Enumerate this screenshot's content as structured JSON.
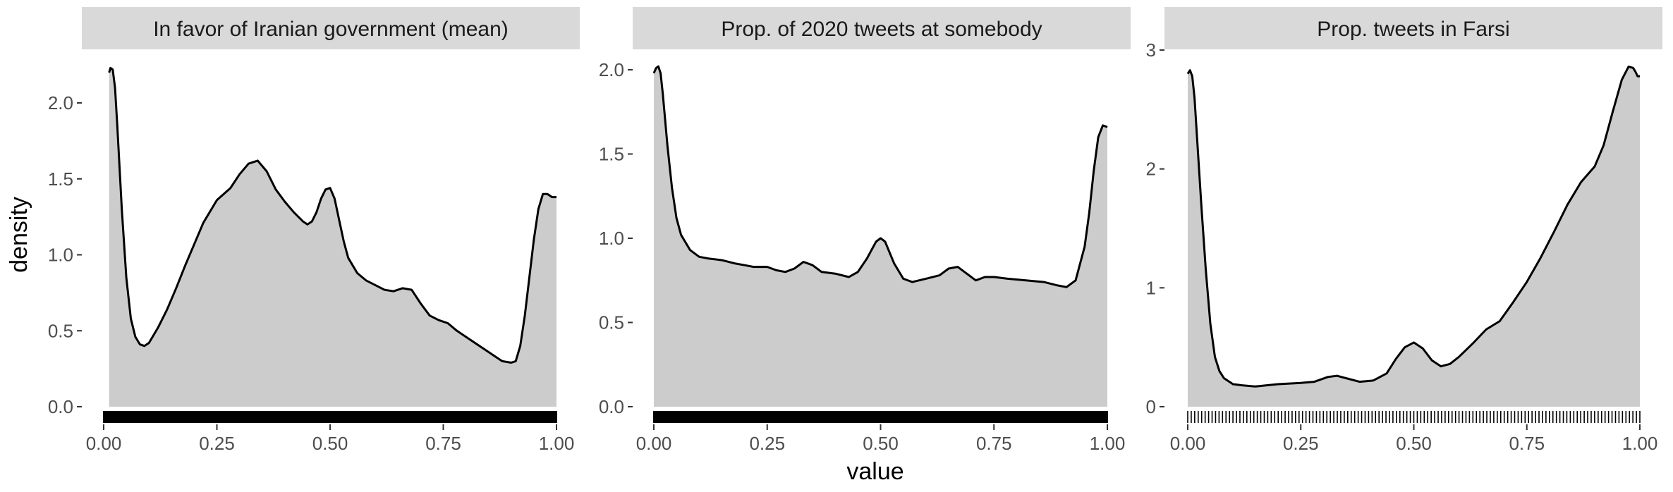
{
  "figure": {
    "xlabel": "value",
    "ylabel": "density"
  },
  "colors": {
    "strip_background": "#d9d9d9",
    "area_fill": "#cccccc",
    "line": "#000000",
    "rug": "#000000",
    "tick_text": "#4d4d4d"
  },
  "chart_data": [
    {
      "type": "area",
      "subtype": "density",
      "title": "In favor of Iranian government (mean)",
      "xlabel": "value",
      "ylabel": "density",
      "xlim": [
        0,
        1
      ],
      "ylim": [
        0,
        2.3
      ],
      "x_ticks": [
        0,
        0.25,
        0.5,
        0.75,
        1
      ],
      "x_tick_labels": [
        "0.00",
        "0.25",
        "0.50",
        "0.75",
        "1.00"
      ],
      "y_ticks": [
        0,
        0.5,
        1,
        1.5,
        2
      ],
      "y_tick_labels": [
        "0.0",
        "0.5",
        "1.0",
        "1.5",
        "2.0"
      ],
      "rug": "dense",
      "x": [
        0.012,
        0.015,
        0.02,
        0.025,
        0.03,
        0.04,
        0.05,
        0.06,
        0.07,
        0.08,
        0.09,
        0.1,
        0.12,
        0.14,
        0.16,
        0.18,
        0.2,
        0.22,
        0.25,
        0.28,
        0.3,
        0.32,
        0.34,
        0.36,
        0.38,
        0.4,
        0.42,
        0.44,
        0.45,
        0.46,
        0.47,
        0.48,
        0.49,
        0.5,
        0.51,
        0.52,
        0.53,
        0.54,
        0.56,
        0.58,
        0.6,
        0.62,
        0.64,
        0.66,
        0.68,
        0.7,
        0.72,
        0.74,
        0.76,
        0.78,
        0.8,
        0.82,
        0.84,
        0.86,
        0.88,
        0.9,
        0.91,
        0.92,
        0.93,
        0.94,
        0.95,
        0.96,
        0.97,
        0.98,
        0.99,
        1.0
      ],
      "y": [
        2.2,
        2.23,
        2.22,
        2.1,
        1.85,
        1.3,
        0.85,
        0.58,
        0.46,
        0.41,
        0.4,
        0.42,
        0.52,
        0.64,
        0.78,
        0.93,
        1.07,
        1.21,
        1.36,
        1.44,
        1.53,
        1.6,
        1.62,
        1.55,
        1.43,
        1.35,
        1.28,
        1.22,
        1.2,
        1.22,
        1.28,
        1.37,
        1.43,
        1.44,
        1.37,
        1.23,
        1.09,
        0.98,
        0.88,
        0.83,
        0.8,
        0.77,
        0.76,
        0.78,
        0.77,
        0.68,
        0.6,
        0.57,
        0.55,
        0.5,
        0.46,
        0.42,
        0.38,
        0.34,
        0.3,
        0.29,
        0.3,
        0.4,
        0.6,
        0.85,
        1.1,
        1.3,
        1.4,
        1.4,
        1.38,
        1.38
      ]
    },
    {
      "type": "area",
      "subtype": "density",
      "title": "Prop. of 2020 tweets at somebody",
      "xlabel": "value",
      "ylabel": "density",
      "xlim": [
        0,
        1
      ],
      "ylim": [
        0,
        2.12
      ],
      "x_ticks": [
        0,
        0.25,
        0.5,
        0.75,
        1
      ],
      "x_tick_labels": [
        "0.00",
        "0.25",
        "0.50",
        "0.75",
        "1.00"
      ],
      "y_ticks": [
        0,
        0.5,
        1,
        1.5,
        2
      ],
      "y_tick_labels": [
        "0.0",
        "0.5",
        "1.0",
        "1.5",
        "2.0"
      ],
      "rug": "dense",
      "x": [
        0.0,
        0.005,
        0.01,
        0.015,
        0.02,
        0.03,
        0.04,
        0.05,
        0.06,
        0.08,
        0.1,
        0.12,
        0.15,
        0.18,
        0.2,
        0.22,
        0.25,
        0.27,
        0.29,
        0.31,
        0.33,
        0.35,
        0.37,
        0.4,
        0.43,
        0.45,
        0.47,
        0.49,
        0.5,
        0.51,
        0.53,
        0.55,
        0.57,
        0.6,
        0.63,
        0.65,
        0.67,
        0.69,
        0.71,
        0.73,
        0.75,
        0.78,
        0.82,
        0.86,
        0.89,
        0.91,
        0.93,
        0.95,
        0.96,
        0.97,
        0.98,
        0.99,
        1.0
      ],
      "y": [
        1.98,
        2.01,
        2.02,
        1.98,
        1.85,
        1.55,
        1.3,
        1.12,
        1.02,
        0.93,
        0.89,
        0.88,
        0.87,
        0.85,
        0.84,
        0.83,
        0.83,
        0.81,
        0.8,
        0.82,
        0.86,
        0.84,
        0.8,
        0.79,
        0.77,
        0.8,
        0.88,
        0.98,
        1.0,
        0.98,
        0.85,
        0.76,
        0.74,
        0.76,
        0.78,
        0.82,
        0.83,
        0.79,
        0.75,
        0.77,
        0.77,
        0.76,
        0.75,
        0.74,
        0.72,
        0.71,
        0.75,
        0.95,
        1.15,
        1.4,
        1.6,
        1.67,
        1.66
      ]
    },
    {
      "type": "area",
      "subtype": "density",
      "title": "Prop. tweets in Farsi",
      "xlabel": "value",
      "ylabel": "density",
      "xlim": [
        0,
        1
      ],
      "ylim": [
        0,
        3.0
      ],
      "x_ticks": [
        0,
        0.25,
        0.5,
        0.75,
        1
      ],
      "x_tick_labels": [
        "0.00",
        "0.25",
        "0.50",
        "0.75",
        "1.00"
      ],
      "y_ticks": [
        0,
        1,
        2,
        3
      ],
      "y_tick_labels": [
        "0",
        "1",
        "2",
        "3"
      ],
      "rug": "sparse",
      "x": [
        0.0,
        0.005,
        0.01,
        0.015,
        0.02,
        0.03,
        0.04,
        0.05,
        0.06,
        0.07,
        0.08,
        0.1,
        0.12,
        0.15,
        0.2,
        0.25,
        0.28,
        0.31,
        0.33,
        0.35,
        0.38,
        0.41,
        0.44,
        0.46,
        0.48,
        0.5,
        0.52,
        0.54,
        0.56,
        0.58,
        0.6,
        0.63,
        0.66,
        0.69,
        0.72,
        0.75,
        0.78,
        0.81,
        0.84,
        0.87,
        0.9,
        0.92,
        0.94,
        0.96,
        0.975,
        0.985,
        0.99,
        0.995,
        1.0
      ],
      "y": [
        2.8,
        2.83,
        2.78,
        2.6,
        2.3,
        1.7,
        1.15,
        0.7,
        0.42,
        0.3,
        0.24,
        0.19,
        0.18,
        0.17,
        0.19,
        0.2,
        0.21,
        0.25,
        0.26,
        0.24,
        0.21,
        0.22,
        0.28,
        0.4,
        0.5,
        0.54,
        0.49,
        0.39,
        0.34,
        0.36,
        0.42,
        0.53,
        0.65,
        0.72,
        0.88,
        1.05,
        1.25,
        1.47,
        1.7,
        1.89,
        2.02,
        2.2,
        2.48,
        2.75,
        2.86,
        2.85,
        2.82,
        2.78,
        2.78
      ]
    }
  ]
}
